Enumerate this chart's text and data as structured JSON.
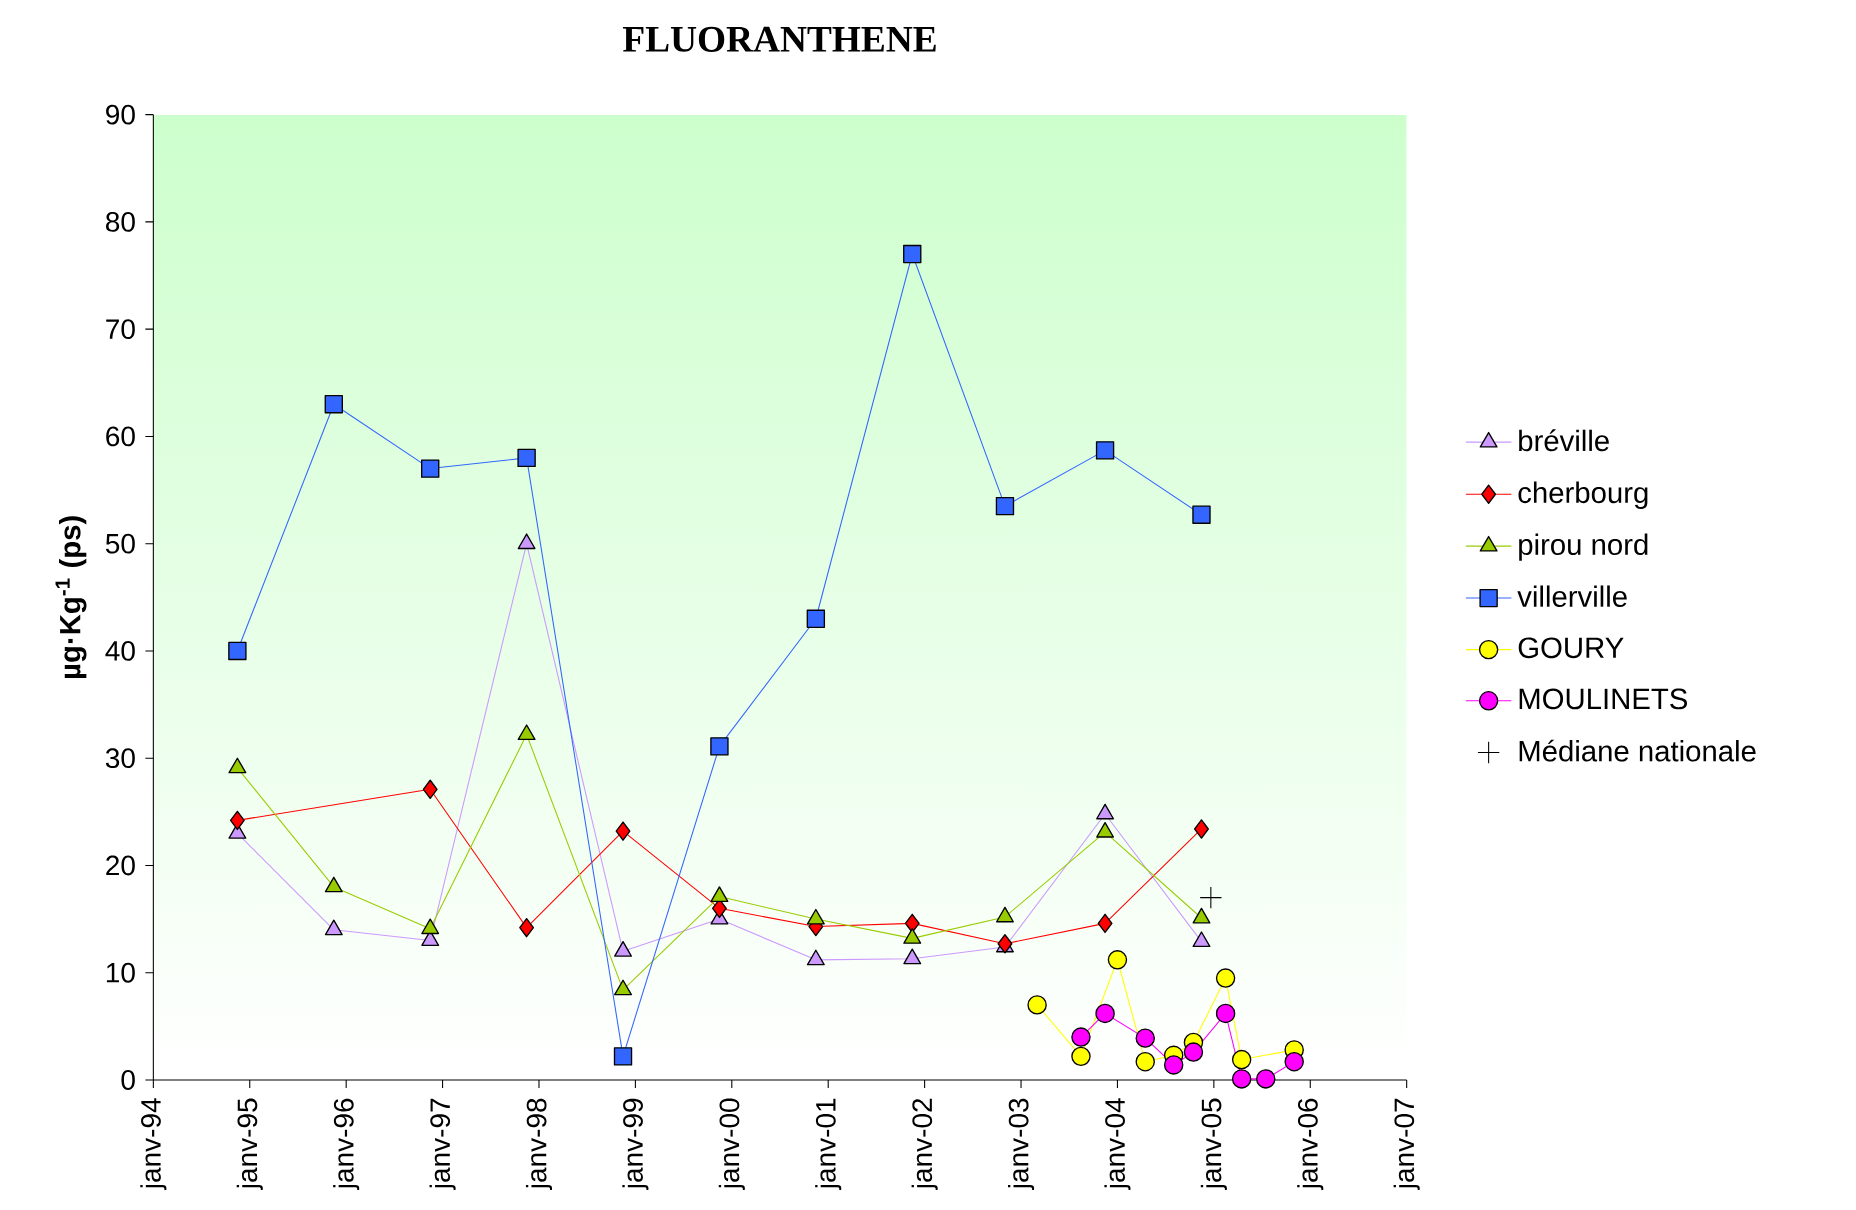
{
  "chart_data": {
    "type": "line",
    "title": "FLUORANTHENE",
    "ylabel": "µg·Kg$^{-1}$ (ps)",
    "xlim": [
      "1994-01",
      "2007-01"
    ],
    "xticks": [
      {
        "value": "1994-01",
        "label": "janv-94"
      },
      {
        "value": "1995-01",
        "label": "janv-95"
      },
      {
        "value": "1996-01",
        "label": "janv-96"
      },
      {
        "value": "1997-01",
        "label": "janv-97"
      },
      {
        "value": "1998-01",
        "label": "janv-98"
      },
      {
        "value": "1999-01",
        "label": "janv-99"
      },
      {
        "value": "2000-01",
        "label": "janv-00"
      },
      {
        "value": "2001-01",
        "label": "janv-01"
      },
      {
        "value": "2002-01",
        "label": "janv-02"
      },
      {
        "value": "2003-01",
        "label": "janv-03"
      },
      {
        "value": "2004-01",
        "label": "janv-04"
      },
      {
        "value": "2005-01",
        "label": "janv-05"
      },
      {
        "value": "2006-01",
        "label": "janv-06"
      },
      {
        "value": "2007-01",
        "label": "janv-07"
      }
    ],
    "ylim": [
      0,
      90
    ],
    "yticks": [
      0,
      10,
      20,
      30,
      40,
      50,
      60,
      70,
      80,
      90
    ],
    "legend": "right",
    "grid": false,
    "series": [
      {
        "name": "bréville",
        "color": "#cc99ff",
        "marker": "triangle",
        "x": [
          "1994-11-15",
          "1995-11-15",
          "1996-11-15",
          "1997-11-15",
          "1998-11-15",
          "1999-11-15",
          "2000-11-15",
          "2001-11-15",
          "2002-11-01",
          "2003-11-15",
          "2004-11-15"
        ],
        "values": [
          23,
          14,
          13,
          50,
          12,
          15,
          11.2,
          11.3,
          12.4,
          24.8,
          12.9
        ]
      },
      {
        "name": "cherbourg",
        "color": "#ff0000",
        "marker": "diamond",
        "x": [
          "1994-11-15",
          "1996-11-15",
          "1997-11-15",
          "1998-11-15",
          "1999-11-15",
          "2000-11-15",
          "2001-11-15",
          "2002-11-01",
          "2003-11-15",
          "2004-11-15"
        ],
        "values": [
          24.2,
          27.1,
          14.2,
          23.2,
          16,
          14.3,
          14.6,
          12.7,
          14.6,
          23.4
        ]
      },
      {
        "name": "pirou nord",
        "color": "#99cc00",
        "marker": "triangle",
        "x": [
          "1994-11-15",
          "1995-11-15",
          "1996-11-15",
          "1997-11-15",
          "1998-11-15",
          "1999-11-15",
          "2000-11-15",
          "2001-11-15",
          "2002-11-01",
          "2003-11-15",
          "2004-11-15"
        ],
        "values": [
          29.1,
          18,
          14.1,
          32.2,
          8.4,
          17.1,
          15,
          13.2,
          15.2,
          23.1,
          15.1
        ]
      },
      {
        "name": "villerville",
        "color": "#3366ff",
        "marker": "square",
        "x": [
          "1994-11-15",
          "1995-11-15",
          "1996-11-15",
          "1997-11-15",
          "1998-11-15",
          "1999-11-15",
          "2000-11-15",
          "2001-11-15",
          "2002-11-01",
          "2003-11-15",
          "2004-11-15"
        ],
        "values": [
          40,
          63,
          57,
          58,
          2.2,
          31.1,
          43,
          77,
          53.5,
          58.7,
          52.7
        ]
      },
      {
        "name": "GOURY",
        "color": "#ffff00",
        "marker": "circle",
        "x": [
          "2003-03-01",
          "2003-08-15",
          "2004-01-01",
          "2004-04-15",
          "2004-08-01",
          "2004-10-15",
          "2005-02-15",
          "2005-04-15",
          "2005-11-01"
        ],
        "values": [
          7,
          2.2,
          11.2,
          1.7,
          2.3,
          3.5,
          9.5,
          1.9,
          2.8
        ]
      },
      {
        "name": "MOULINETS",
        "color": "#ff00ff",
        "marker": "circle",
        "x": [
          "2003-08-15",
          "2003-11-15",
          "2004-04-15",
          "2004-08-01",
          "2004-10-15",
          "2005-02-15",
          "2005-04-15",
          "2005-07-15",
          "2005-11-01"
        ],
        "values": [
          4,
          6.2,
          3.9,
          1.4,
          2.6,
          6.2,
          0.1,
          0.1,
          1.7
        ]
      },
      {
        "name": "Médiane nationale",
        "color": "#000000",
        "marker": "cross",
        "line_style": "none",
        "x": [
          "2004-12-20"
        ],
        "values": [
          17
        ]
      }
    ]
  }
}
